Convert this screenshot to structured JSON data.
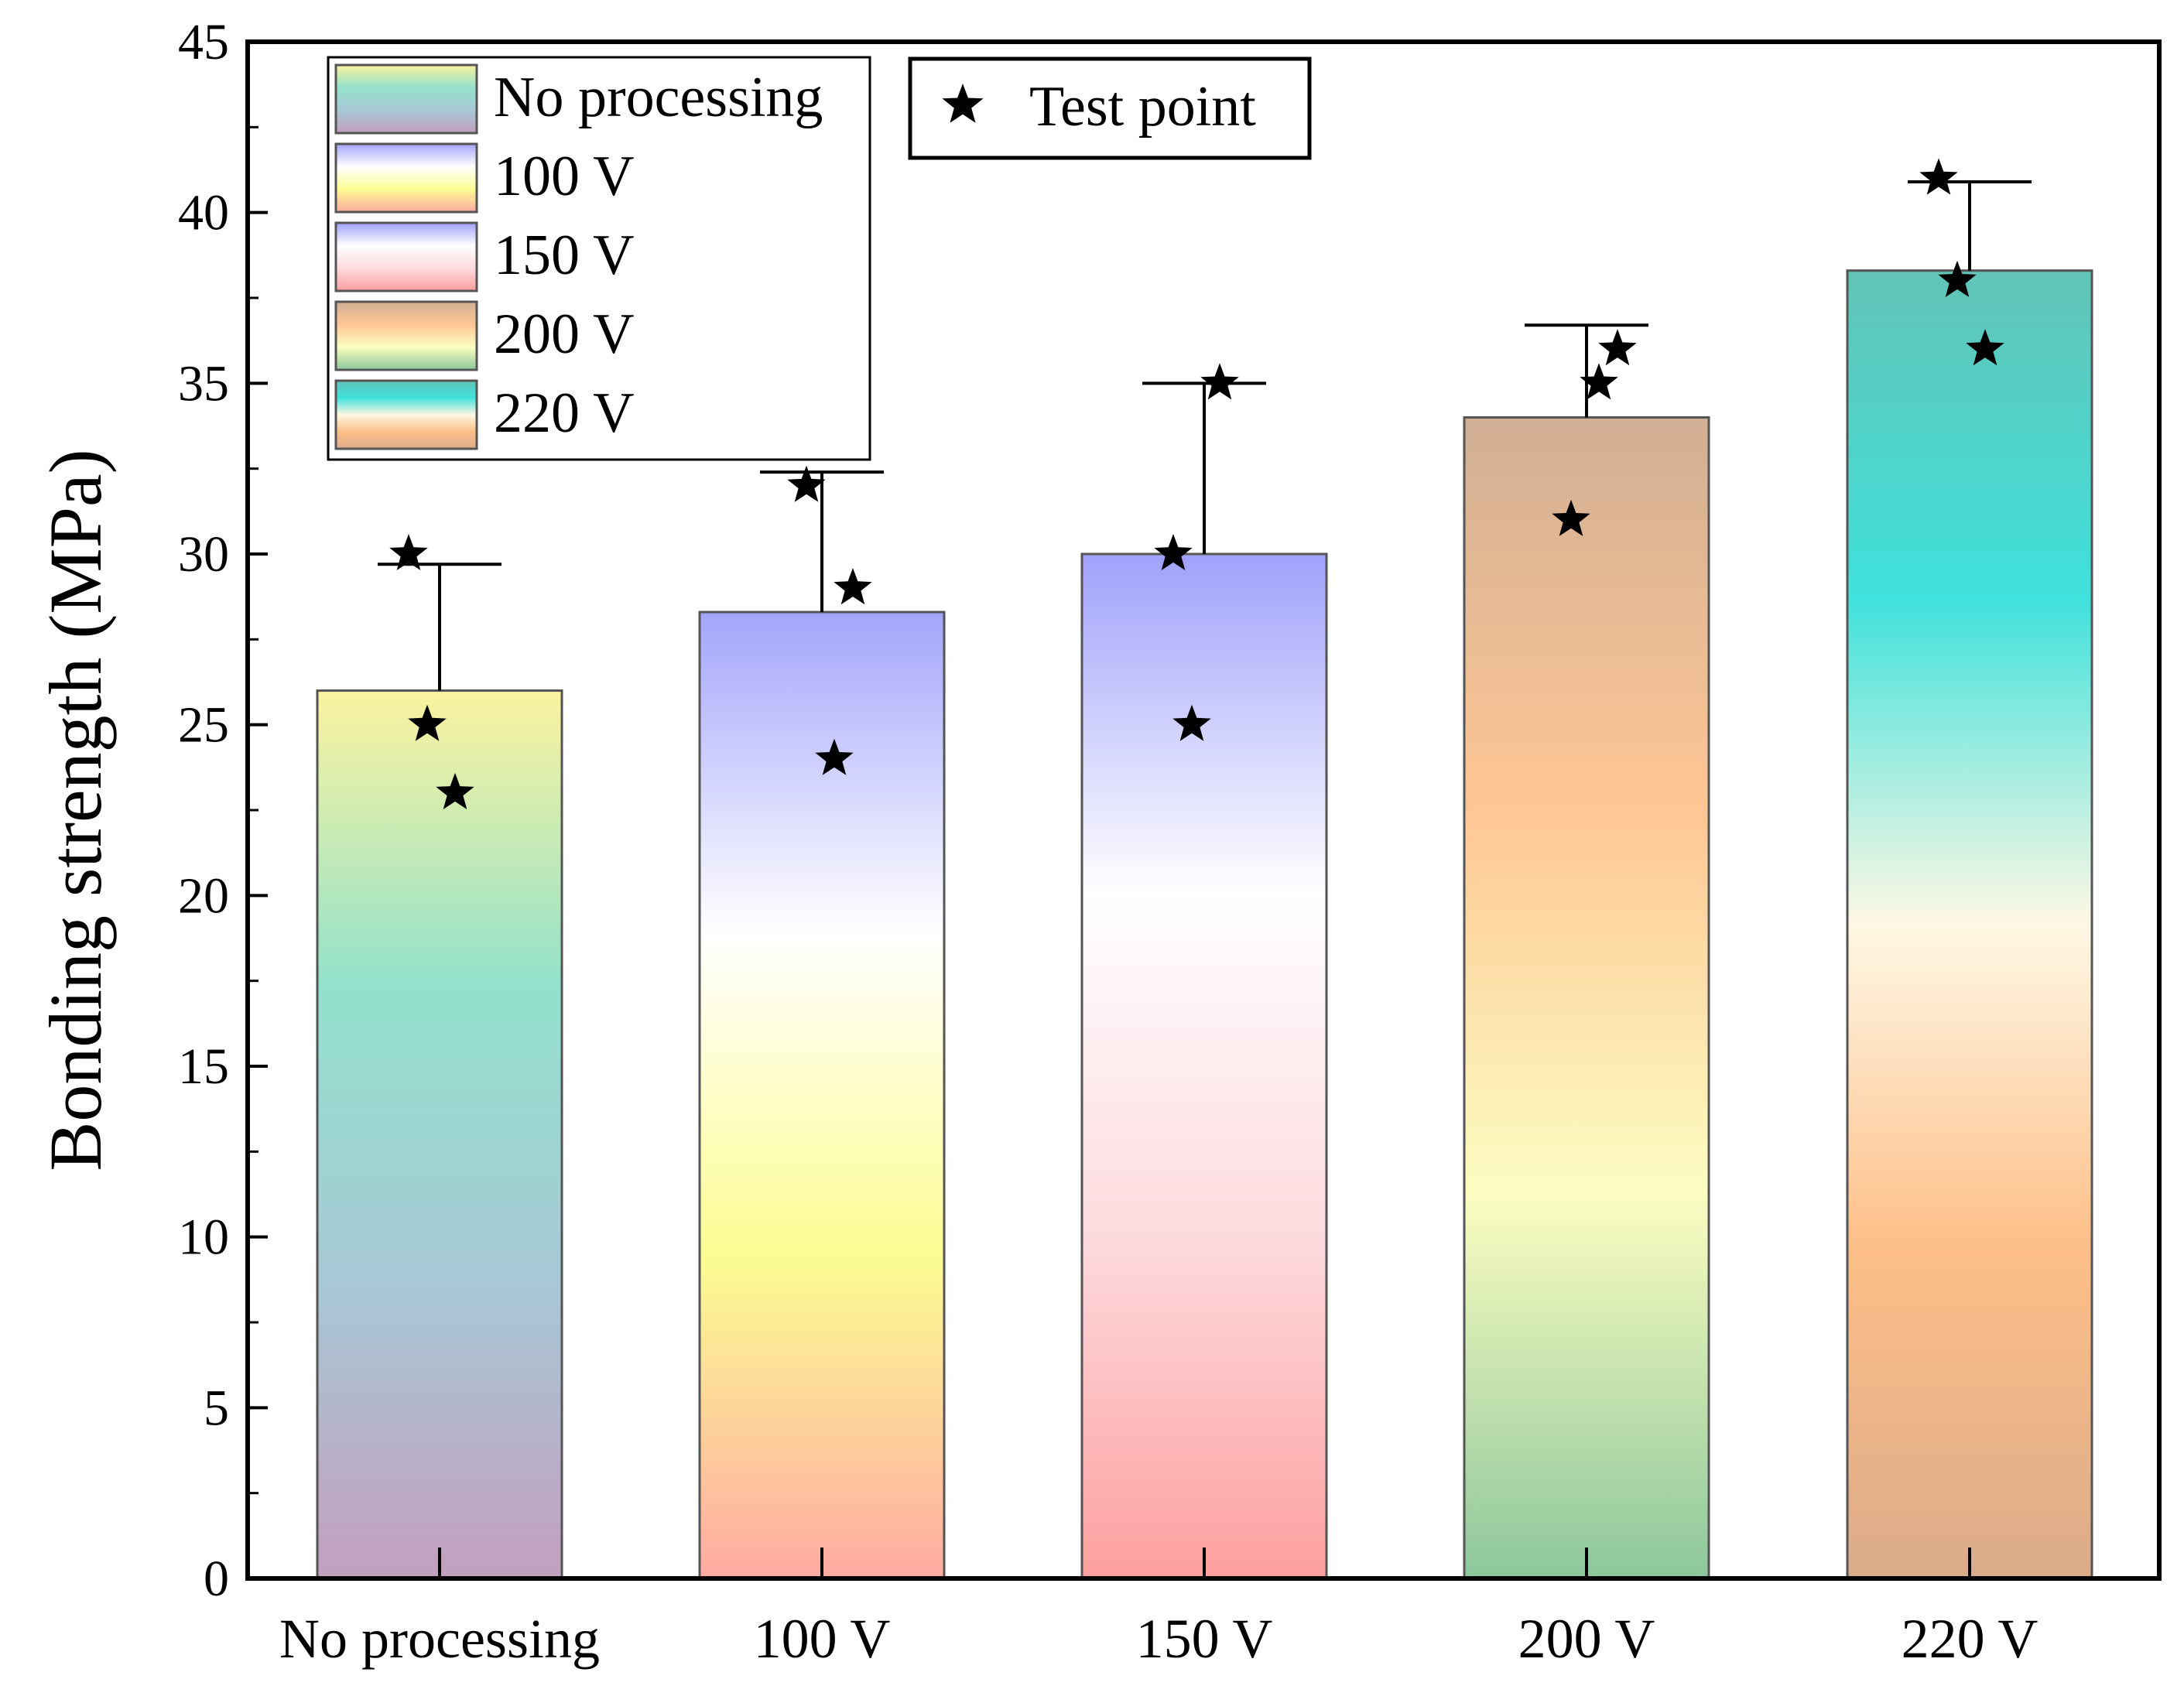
{
  "chart_data": {
    "type": "bar",
    "title": "",
    "xlabel": "",
    "ylabel": "Bonding strength (MPa)",
    "ylim": [
      0,
      45
    ],
    "yticks": [
      0,
      5,
      10,
      15,
      20,
      25,
      30,
      35,
      40,
      45
    ],
    "categories": [
      "No processing",
      "100 V",
      "150 V",
      "200 V",
      "220 V"
    ],
    "values": [
      26.0,
      28.3,
      30.0,
      34.0,
      38.3
    ],
    "errors": [
      3.7,
      4.1,
      5.0,
      2.7,
      2.6
    ],
    "test_points": [
      [
        30,
        25,
        23
      ],
      [
        29,
        24,
        32
      ],
      [
        30,
        25,
        35
      ],
      [
        36,
        35,
        31
      ],
      [
        41,
        38,
        36
      ]
    ],
    "legend": {
      "series": [
        "No processing",
        "100 V",
        "150 V",
        "200 V",
        "220 V"
      ],
      "points_label": "Test point",
      "position": "top-left"
    },
    "colors": {
      "no_processing": [
        "#fbf29a",
        "#8de0c9",
        "#a3c5d3",
        "#c09abb"
      ],
      "v100": [
        "#9fa0fb",
        "#ffffff",
        "#fcfc8c",
        "#fea69d"
      ],
      "v150": [
        "#9b9cfb",
        "#ffffff",
        "#fdd8dc",
        "#fd9a9a"
      ],
      "v200": [
        "#cfab8f",
        "#fec38e",
        "#fcfdbe",
        "#86c496"
      ],
      "v220": [
        "#5ac0b3",
        "#35e0da",
        "#fff7e3",
        "#fdbb81",
        "#d9a783"
      ]
    }
  }
}
